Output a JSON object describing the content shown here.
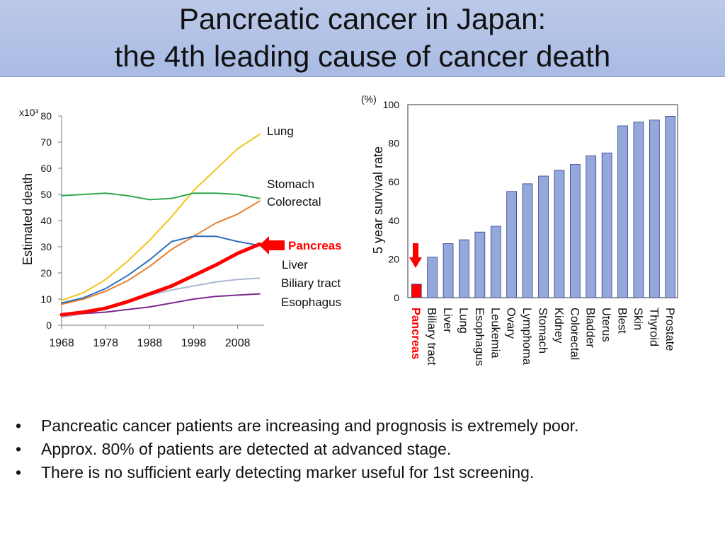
{
  "title": {
    "line1": "Pancreatic cancer in Japan:",
    "line2": "the 4th leading cause of cancer death"
  },
  "chart_data": [
    {
      "type": "line",
      "title": "",
      "xlabel": "",
      "ylabel": "Estimated death",
      "y_unit": "x10³",
      "xlim": [
        1968,
        2014
      ],
      "ylim": [
        0,
        80
      ],
      "xticks": [
        1968,
        1978,
        1988,
        1998,
        2008
      ],
      "yticks": [
        0,
        10,
        20,
        30,
        40,
        50,
        60,
        70,
        80
      ],
      "x": [
        1968,
        1973,
        1978,
        1983,
        1988,
        1993,
        1998,
        2003,
        2008,
        2013
      ],
      "series": [
        {
          "name": "Lung",
          "color": "#f2c418",
          "highlight": false,
          "values": [
            9.5,
            12.5,
            17.5,
            24.5,
            32.5,
            41.5,
            51.5,
            59.5,
            67.5,
            73
          ]
        },
        {
          "name": "Stomach",
          "color": "#2ea84d",
          "highlight": false,
          "values": [
            49.5,
            50,
            50.5,
            49.5,
            48,
            48.5,
            50.5,
            50.5,
            50,
            48.5
          ]
        },
        {
          "name": "Colorectal",
          "color": "#ee7d2a",
          "highlight": false,
          "values": [
            8,
            10,
            13,
            17,
            22.5,
            29,
            34,
            39,
            42.5,
            47.5
          ]
        },
        {
          "name": "Liver",
          "color": "#2d6fc1",
          "highlight": false,
          "values": [
            8.5,
            10.5,
            14,
            19,
            25,
            32,
            34,
            34,
            32,
            30.5
          ]
        },
        {
          "name": "Pancreas",
          "color": "#ff0000",
          "highlight": true,
          "values": [
            4,
            5,
            6.5,
            9,
            12,
            15,
            19,
            23,
            27.5,
            31
          ]
        },
        {
          "name": "Biliary tract",
          "color": "#aab6d3",
          "highlight": false,
          "values": [
            3,
            4.5,
            6.5,
            9,
            11.5,
            13.5,
            15,
            16.5,
            17.5,
            18
          ]
        },
        {
          "name": "Esophagus",
          "color": "#7a2a8e",
          "highlight": false,
          "values": [
            4,
            4.5,
            5,
            6,
            7,
            8.5,
            10,
            11,
            11.5,
            12
          ]
        }
      ]
    },
    {
      "type": "bar",
      "title": "",
      "xlabel": "",
      "ylabel": "5 year survival rate",
      "y_unit": "(%)",
      "ylim": [
        0,
        100
      ],
      "yticks": [
        0,
        20,
        40,
        60,
        80,
        100
      ],
      "categories": [
        "Pancreas",
        "Biliary tract",
        "Liver",
        "Lung",
        "Esophagus",
        "Leukemia",
        "Ovary",
        "Lymphoma",
        "Stomach",
        "Kidney",
        "Colorectal",
        "Bladder",
        "Uterus",
        "Blest",
        "Skin",
        "Thyroid",
        "Prostate"
      ],
      "values": [
        7,
        21,
        28,
        30,
        34,
        37,
        55,
        59,
        63,
        66,
        69,
        73.5,
        75,
        89,
        91,
        92,
        94
      ],
      "bar_color": "#94a8dc",
      "highlight_color": "#ff0000",
      "highlight_category": "Pancreas"
    }
  ],
  "bullets": [
    "Pancreatic cancer patients are increasing and prognosis is extremely poor.",
    "Approx. 80% of patients are detected at advanced stage.",
    "There is no sufficient early detecting marker useful for 1st screening."
  ],
  "bullet_symbol": "•",
  "colors": {
    "title_bg": "#aebfe6",
    "highlight": "#ff0000",
    "bar": "#94a8dc"
  }
}
